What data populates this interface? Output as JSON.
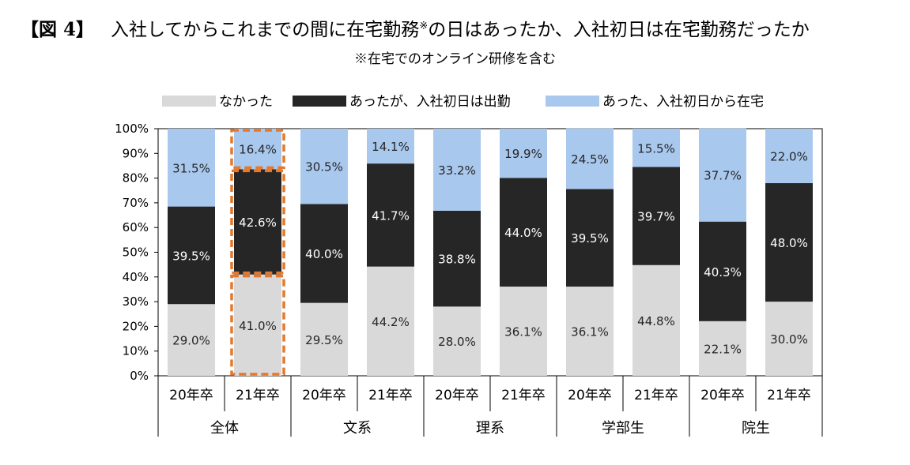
{
  "figure_label": "【図 4】",
  "title_main": "入社してからこれまでの間に在宅勤務",
  "title_note_mark": "※",
  "title_rest": "の日はあったか、入社初日は在宅勤務だったか",
  "subtitle": "※在宅でのオンライン研修を含む",
  "colors": {
    "none": "#d9d9d9",
    "office_first_day": "#262626",
    "home_first_day": "#a9c8ee",
    "highlight": "#e4782c",
    "axis": "#000000",
    "label_on_dark": "#ffffff",
    "label_on_light": "#262626"
  },
  "chart_data": {
    "type": "bar",
    "stacked": true,
    "orientation": "vertical",
    "title": "入社してからこれまでの間に在宅勤務※の日はあったか、入社初日は在宅勤務だったか",
    "subtitle": "※在宅でのオンライン研修を含む",
    "ylim": [
      0,
      100
    ],
    "y_ticks": [
      "0%",
      "10%",
      "20%",
      "30%",
      "40%",
      "50%",
      "60%",
      "70%",
      "80%",
      "90%",
      "100%"
    ],
    "legend_position": "top",
    "categories": [
      "20年卒",
      "21年卒",
      "20年卒",
      "21年卒",
      "20年卒",
      "21年卒",
      "20年卒",
      "21年卒",
      "20年卒",
      "21年卒"
    ],
    "groups": [
      {
        "label": "全体",
        "span": 2
      },
      {
        "label": "文系",
        "span": 2
      },
      {
        "label": "理系",
        "span": 2
      },
      {
        "label": "学部生",
        "span": 2
      },
      {
        "label": "院生",
        "span": 2
      }
    ],
    "series": [
      {
        "name": "なかった",
        "color_key": "none",
        "values": [
          29.0,
          41.0,
          29.5,
          44.2,
          28.0,
          36.1,
          36.1,
          44.8,
          22.1,
          30.0
        ],
        "labels": [
          "29.0%",
          "41.0%",
          "29.5%",
          "44.2%",
          "28.0%",
          "36.1%",
          "36.1%",
          "44.8%",
          "22.1%",
          "30.0%"
        ]
      },
      {
        "name": "あったが、入社初日は出勤",
        "color_key": "office_first_day",
        "values": [
          39.5,
          42.6,
          40.0,
          41.7,
          38.8,
          44.0,
          39.5,
          39.7,
          40.3,
          48.0
        ],
        "labels": [
          "39.5%",
          "42.6%",
          "40.0%",
          "41.7%",
          "38.8%",
          "44.0%",
          "39.5%",
          "39.7%",
          "40.3%",
          "48.0%"
        ]
      },
      {
        "name": "あった、入社初日から在宅",
        "color_key": "home_first_day",
        "values": [
          31.5,
          16.4,
          30.5,
          14.1,
          33.2,
          19.9,
          24.5,
          15.5,
          37.7,
          22.0
        ],
        "labels": [
          "31.5%",
          "16.4%",
          "30.5%",
          "14.1%",
          "33.2%",
          "19.9%",
          "24.5%",
          "15.5%",
          "37.7%",
          "22.0%"
        ]
      }
    ],
    "highlighted_category_index": 1
  }
}
